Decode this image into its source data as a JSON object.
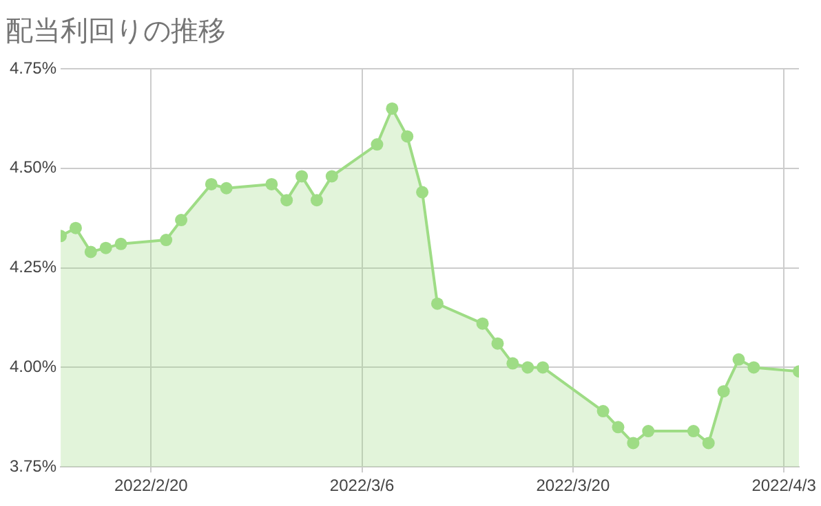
{
  "chart_data": {
    "type": "area",
    "title": "配当利回りの推移",
    "x": [
      "2022-02-14",
      "2022-02-15",
      "2022-02-16",
      "2022-02-17",
      "2022-02-18",
      "2022-02-21",
      "2022-02-22",
      "2022-02-24",
      "2022-02-25",
      "2022-02-28",
      "2022-03-01",
      "2022-03-02",
      "2022-03-03",
      "2022-03-04",
      "2022-03-07",
      "2022-03-08",
      "2022-03-09",
      "2022-03-10",
      "2022-03-11",
      "2022-03-14",
      "2022-03-15",
      "2022-03-16",
      "2022-03-17",
      "2022-03-18",
      "2022-03-22",
      "2022-03-23",
      "2022-03-24",
      "2022-03-25",
      "2022-03-28",
      "2022-03-29",
      "2022-03-30",
      "2022-03-31",
      "2022-04-01",
      "2022-04-04"
    ],
    "series": [
      {
        "color": "#9edc85",
        "values": [
          4.33,
          4.35,
          4.29,
          4.3,
          4.31,
          4.32,
          4.37,
          4.46,
          4.45,
          4.46,
          4.42,
          4.48,
          4.42,
          4.48,
          4.56,
          4.65,
          4.58,
          4.44,
          4.16,
          4.11,
          4.06,
          4.01,
          4.0,
          4.0,
          3.89,
          3.85,
          3.81,
          3.84,
          3.84,
          3.81,
          3.94,
          4.02,
          4.0,
          3.99
        ]
      }
    ],
    "xlim": [
      "2022-02-14",
      "2022-04-04"
    ],
    "xticks": [
      {
        "value": "2022-02-20",
        "label": "2022/2/20"
      },
      {
        "value": "2022-03-06",
        "label": "2022/3/6"
      },
      {
        "value": "2022-03-20",
        "label": "2022/3/20"
      },
      {
        "value": "2022-04-03",
        "label": "2022/4/3"
      }
    ],
    "ylim": [
      3.75,
      4.75
    ],
    "yticks": [
      {
        "value": 3.75,
        "label": "3.75%"
      },
      {
        "value": 4.0,
        "label": "4.00%"
      },
      {
        "value": 4.25,
        "label": "4.25%"
      },
      {
        "value": 4.5,
        "label": "4.50%"
      },
      {
        "value": 4.75,
        "label": "4.75%"
      }
    ],
    "grid": true,
    "legend": false,
    "marker": "circle",
    "line_style": "solid"
  }
}
